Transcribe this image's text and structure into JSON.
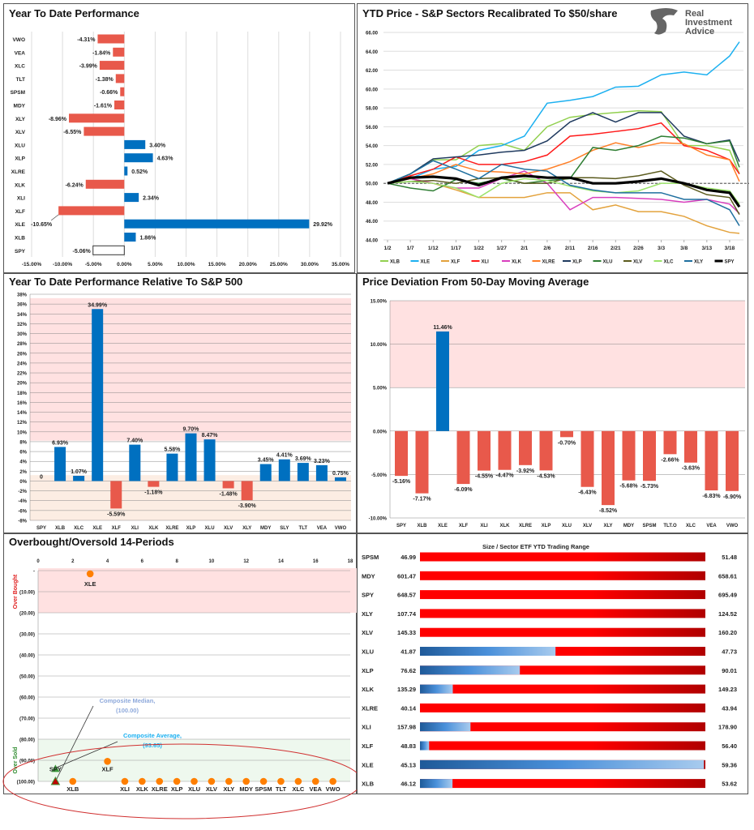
{
  "chart_data": [
    {
      "type": "bar",
      "orientation": "horizontal",
      "title": "Year To Date Performance",
      "categories": [
        "VWO",
        "VEA",
        "XLC",
        "TLT",
        "SPSM",
        "MDY",
        "XLY",
        "XLV",
        "XLU",
        "XLP",
        "XLRE",
        "XLK",
        "XLI",
        "XLF",
        "XLE",
        "XLB",
        "SPY"
      ],
      "values": [
        -4.31,
        -1.84,
        -3.99,
        -1.38,
        -0.66,
        -1.61,
        -8.96,
        -6.55,
        3.4,
        4.63,
        0.52,
        -6.24,
        2.34,
        -10.65,
        29.92,
        1.86,
        -5.06
      ],
      "data_labels": [
        "-4.31%",
        "-1.84%",
        "-3.99%",
        "-1.38%",
        "-0.66%",
        "-1.61%",
        "-8.96%",
        "-6.55%",
        "3.40%",
        "4.63%",
        "0.52%",
        "-6.24%",
        "2.34%",
        "-10.65%",
        "29.92%",
        "1.86%",
        "-5.06%"
      ],
      "xlim": [
        -15,
        35
      ],
      "x_ticks": [
        -15,
        -10,
        -5,
        0,
        5,
        10,
        15,
        20,
        25,
        30,
        35
      ],
      "x_tick_labels": [
        "-15.00%",
        "-10.00%",
        "-5.00%",
        "0.00%",
        "5.00%",
        "10.00%",
        "15.00%",
        "20.00%",
        "25.00%",
        "30.00%",
        "35.00%"
      ],
      "grid": "vertical",
      "colors": {
        "positive": "#0070C0",
        "negative": "#E8594B",
        "highlight_fill": "#FFFFFF",
        "highlight": "SPY"
      }
    },
    {
      "type": "line",
      "title": "YTD Price - S&P Sectors Recalibrated To $50/share",
      "x_tick_labels": [
        "1/2",
        "1/7",
        "1/12",
        "1/17",
        "1/22",
        "1/27",
        "2/1",
        "2/6",
        "2/11",
        "2/16",
        "2/21",
        "2/26",
        "3/3",
        "3/8",
        "3/13",
        "3/18"
      ],
      "ylim": [
        44,
        66
      ],
      "y_ticks": [
        44,
        46,
        48,
        50,
        52,
        54,
        56,
        58,
        60,
        62,
        64,
        66
      ],
      "y_tick_labels": [
        "44.00",
        "46.00",
        "48.00",
        "50.00",
        "52.00",
        "54.00",
        "56.00",
        "58.00",
        "60.00",
        "62.00",
        "64.00",
        "66.00"
      ],
      "reference_line": 50,
      "grid": "horizontal",
      "legend": "bottom",
      "series": [
        {
          "name": "XLB",
          "color": "#92D050",
          "values": [
            50,
            51,
            52.5,
            52.5,
            54,
            54.2,
            53.5,
            56,
            57,
            57.3,
            57.5,
            57.7,
            57.6,
            54,
            54,
            53.5,
            51
          ]
        },
        {
          "name": "XLE",
          "color": "#1CB0F0",
          "values": [
            50,
            50.5,
            51.5,
            51.8,
            53.5,
            54,
            55,
            58.5,
            58.8,
            59.2,
            60.2,
            60.3,
            61.5,
            61.8,
            61.5,
            63.5,
            65
          ]
        },
        {
          "name": "XLF",
          "color": "#E3A23C",
          "values": [
            50,
            50.5,
            50,
            49.3,
            48.5,
            48.5,
            48.5,
            49,
            49,
            47.2,
            47.7,
            47,
            47,
            46.5,
            45.5,
            44.8,
            44.7
          ]
        },
        {
          "name": "XLI",
          "color": "#FF1A1A",
          "values": [
            50,
            50.8,
            51.5,
            52.8,
            52,
            52,
            52.3,
            53,
            55,
            55.2,
            55.5,
            55.8,
            56.4,
            54,
            53.5,
            52.5,
            51
          ]
        },
        {
          "name": "XLK",
          "color": "#D93FBE",
          "values": [
            50,
            50.5,
            50,
            49.5,
            49.5,
            50.5,
            51.3,
            50,
            47.2,
            48.5,
            48.5,
            48.4,
            48.3,
            48,
            48.3,
            47.8,
            46.8
          ]
        },
        {
          "name": "XLRE",
          "color": "#FF7F27",
          "values": [
            50,
            50.5,
            51,
            52,
            51.3,
            51.2,
            51,
            51.5,
            52.3,
            53.5,
            54.3,
            53.8,
            54.3,
            54.2,
            53,
            52.5,
            50.2
          ]
        },
        {
          "name": "XLP",
          "color": "#1F3A5F",
          "values": [
            50,
            51,
            52.6,
            52.8,
            53,
            53.3,
            53.5,
            54.5,
            56.5,
            57.5,
            56.5,
            57.5,
            57.5,
            55,
            54.2,
            54.6,
            52.3
          ]
        },
        {
          "name": "XLU",
          "color": "#2E7D32",
          "values": [
            50,
            49.5,
            49.2,
            50.4,
            50,
            50.5,
            50,
            50.3,
            50.5,
            53.8,
            53.5,
            54,
            55,
            54.8,
            54.2,
            54.5,
            51.7
          ]
        },
        {
          "name": "XLV",
          "color": "#5B5B1E",
          "values": [
            50,
            50.2,
            50.3,
            50,
            50.5,
            50.6,
            50,
            50,
            50.6,
            50.6,
            50.5,
            50.8,
            51.3,
            49.8,
            48.8,
            48.5,
            46.7
          ]
        },
        {
          "name": "XLC",
          "color": "#9BE36A",
          "values": [
            50,
            50.2,
            50,
            49.5,
            48.5,
            50,
            50.5,
            50.3,
            49.7,
            49.2,
            49,
            49.2,
            50,
            50,
            49.5,
            49.2,
            47.8
          ]
        },
        {
          "name": "XLY",
          "color": "#1F6F9F",
          "values": [
            50,
            51,
            52.4,
            51.5,
            50.5,
            52,
            51.5,
            51.3,
            49.8,
            49.3,
            49,
            49,
            49,
            48.3,
            48.3,
            47.2,
            45.5
          ]
        },
        {
          "name": "SPY",
          "color": "#000000",
          "values": [
            50,
            50.6,
            50.7,
            50.5,
            49.8,
            50.6,
            50.8,
            50.6,
            50.6,
            50,
            50,
            50.2,
            50.5,
            50,
            49.3,
            49,
            47.5
          ]
        }
      ],
      "logo": {
        "lines": [
          "Real",
          "Investment",
          "Advice"
        ]
      }
    },
    {
      "type": "bar",
      "title": "Year To Date Performance Relative To S&P 500",
      "categories": [
        "SPY",
        "XLB",
        "XLC",
        "XLE",
        "XLF",
        "XLI",
        "XLK",
        "XLRE",
        "XLP",
        "XLU",
        "XLV",
        "XLY",
        "MDY",
        "SLY",
        "TLT",
        "VEA",
        "VWO"
      ],
      "values": [
        0,
        6.93,
        1.07,
        34.99,
        -5.59,
        7.4,
        -1.18,
        5.58,
        9.7,
        8.47,
        -1.48,
        -3.9,
        3.45,
        4.41,
        3.69,
        3.23,
        0.75
      ],
      "data_labels": [
        "0",
        "6.93%",
        "1.07%",
        "34.99%",
        "-5.59%",
        "7.40%",
        "-1.18%",
        "5.58%",
        "9.70%",
        "8.47%",
        "-1.48%",
        "-3.90%",
        "3.45%",
        "4.41%",
        "3.69%",
        "3.23%",
        "0.75%"
      ],
      "ylim": [
        -8,
        38
      ],
      "y_ticks": [
        -8,
        -6,
        -4,
        -2,
        0,
        2,
        4,
        6,
        8,
        10,
        12,
        14,
        16,
        18,
        20,
        22,
        24,
        26,
        28,
        30,
        32,
        34,
        36,
        38
      ],
      "y_tick_labels": [
        "-8%",
        "-6%",
        "-4%",
        "-2%",
        "0%",
        "2%",
        "4%",
        "6%",
        "8%",
        "10%",
        "12%",
        "14%",
        "16%",
        "18%",
        "20%",
        "22%",
        "24%",
        "26%",
        "28%",
        "30%",
        "32%",
        "34%",
        "36%",
        "38%"
      ],
      "grid": "horizontal",
      "bands": [
        {
          "from": 8.2,
          "to": 37.2,
          "color": "#FFE1E1"
        },
        {
          "from": -8,
          "to": 1.2,
          "color": "#FCEDE3"
        }
      ],
      "colors": {
        "positive": "#0070C0",
        "negative": "#E8594B"
      }
    },
    {
      "type": "bar",
      "title": "Price Deviation From 50-Day Moving Average",
      "categories": [
        "SPY",
        "XLB",
        "XLE",
        "XLF",
        "XLI",
        "XLK",
        "XLRE",
        "XLP",
        "XLU",
        "XLV",
        "XLY",
        "MDY",
        "SPSM",
        "TLT.O",
        "XLC",
        "VEA",
        "VWO"
      ],
      "values": [
        -5.16,
        -7.17,
        11.46,
        -6.09,
        -4.55,
        -4.47,
        -3.92,
        -4.53,
        -0.7,
        -6.43,
        -8.52,
        -5.68,
        -5.73,
        -2.66,
        -3.63,
        -6.83,
        -6.9
      ],
      "data_labels": [
        "-5.16%",
        "-7.17%",
        "11.46%",
        "-6.09%",
        "-4.55%",
        "-4.47%",
        "-3.92%",
        "-4.53%",
        "-0.70%",
        "-6.43%",
        "-8.52%",
        "-5.68%",
        "-5.73%",
        "-2.66%",
        "-3.63%",
        "-6.83%",
        "-6.90%"
      ],
      "ylim": [
        -10,
        15
      ],
      "y_ticks": [
        -10,
        -5,
        0,
        5,
        10,
        15
      ],
      "y_tick_labels": [
        "-10.00%",
        "-5.00%",
        "0.00%",
        "5.00%",
        "10.00%",
        "15.00%"
      ],
      "grid": "horizontal",
      "bands": [
        {
          "from": 5,
          "to": 15,
          "color": "#FFE1E1"
        }
      ],
      "colors": {
        "positive": "#0070C0",
        "negative": "#E8594B"
      }
    },
    {
      "type": "scatter",
      "title": "Overbought/Oversold 14-Periods",
      "xlim": [
        0,
        18
      ],
      "x_ticks": [
        0,
        2,
        4,
        6,
        8,
        10,
        12,
        14,
        16,
        18
      ],
      "x_tick_labels": [
        "0",
        "2",
        "4",
        "6",
        "8",
        "10",
        "12",
        "14",
        "16",
        "18"
      ],
      "ylim": [
        -100,
        0
      ],
      "y_ticks": [
        0,
        -10,
        -20,
        -30,
        -40,
        -50,
        -60,
        -70,
        -80,
        -90,
        -100
      ],
      "y_tick_labels": [
        "-",
        "(10.00)",
        "(20.00)",
        "(30.00)",
        "(40.00)",
        "(50.00)",
        "(60.00)",
        "(70.00)",
        "(80.00)",
        "(90.00)",
        "(100.00)"
      ],
      "grid": "horizontal",
      "bands": [
        {
          "label": "Over Bought",
          "from": 0,
          "to": -20,
          "color": "#FFE1E1",
          "label_color": "#E02020"
        },
        {
          "label": "Over Sold",
          "from": -80,
          "to": -100,
          "color": "#EEF8EE",
          "label_color": "#2E8B2E"
        }
      ],
      "points": [
        {
          "label": "SPY",
          "x": 1,
          "y": -94,
          "marker": "triangle",
          "color": "#3A9A3A"
        },
        {
          "label": "XLB",
          "x": 2,
          "y": -100,
          "marker": "circle",
          "color": "#FF7F00"
        },
        {
          "label": "XLE",
          "x": 3,
          "y": -1.5,
          "marker": "circle",
          "color": "#FF7F00"
        },
        {
          "label": "XLF",
          "x": 4,
          "y": -90.5,
          "marker": "circle",
          "color": "#FF7F00"
        },
        {
          "label": "XLI",
          "x": 5,
          "y": -100,
          "marker": "circle",
          "color": "#FF7F00"
        },
        {
          "label": "XLK",
          "x": 6,
          "y": -100,
          "marker": "circle",
          "color": "#FF7F00"
        },
        {
          "label": "XLRE",
          "x": 7,
          "y": -100,
          "marker": "circle",
          "color": "#FF7F00"
        },
        {
          "label": "XLP",
          "x": 8,
          "y": -100,
          "marker": "circle",
          "color": "#FF7F00"
        },
        {
          "label": "XLU",
          "x": 9,
          "y": -100,
          "marker": "circle",
          "color": "#FF7F00"
        },
        {
          "label": "XLV",
          "x": 10,
          "y": -100,
          "marker": "circle",
          "color": "#FF7F00"
        },
        {
          "label": "XLY",
          "x": 11,
          "y": -100,
          "marker": "circle",
          "color": "#FF7F00"
        },
        {
          "label": "MDY",
          "x": 12,
          "y": -100,
          "marker": "circle",
          "color": "#FF7F00"
        },
        {
          "label": "SPSM",
          "x": 13,
          "y": -100,
          "marker": "circle",
          "color": "#FF7F00"
        },
        {
          "label": "TLT",
          "x": 14,
          "y": -100,
          "marker": "circle",
          "color": "#FF7F00"
        },
        {
          "label": "XLC",
          "x": 15,
          "y": -100,
          "marker": "circle",
          "color": "#FF7F00"
        },
        {
          "label": "VEA",
          "x": 16,
          "y": -100,
          "marker": "circle",
          "color": "#FF7F00"
        },
        {
          "label": "VWO",
          "x": 17,
          "y": -100,
          "marker": "circle",
          "color": "#FF7F00"
        }
      ],
      "annotations": [
        {
          "name": "Composite Median",
          "lines": [
            "Composite Median,",
            "(100.00)"
          ],
          "x": 1,
          "y": -100,
          "color": "#8EA9DB",
          "marker_color": "#C00000"
        },
        {
          "name": "Composite Average",
          "lines": [
            "Composite Average,",
            "(93.65)"
          ],
          "x": 1,
          "y": -93.65,
          "color": "#1CB0F0",
          "marker_color": "#3A9A3A"
        }
      ],
      "highlight_ellipse_color": "#D03030"
    },
    {
      "type": "table",
      "title": "Size / Sector ETF YTD Trading Range",
      "columns": [
        "ticker",
        "low",
        "range",
        "high"
      ],
      "rows": [
        {
          "ticker": "SPSM",
          "low": "46.99",
          "high": "51.48",
          "position": 0
        },
        {
          "ticker": "MDY",
          "low": "601.47",
          "high": "658.61",
          "position": 0
        },
        {
          "ticker": "SPY",
          "low": "648.57",
          "high": "695.49",
          "position": 0
        },
        {
          "ticker": "XLY",
          "low": "107.74",
          "high": "124.52",
          "position": 0
        },
        {
          "ticker": "XLV",
          "low": "145.33",
          "high": "160.20",
          "position": 0
        },
        {
          "ticker": "XLU",
          "low": "41.87",
          "high": "47.73",
          "position": 0.475
        },
        {
          "ticker": "XLP",
          "low": "76.62",
          "high": "90.01",
          "position": 0.35
        },
        {
          "ticker": "XLK",
          "low": "135.29",
          "high": "149.23",
          "position": 0.115
        },
        {
          "ticker": "XLRE",
          "low": "40.14",
          "high": "43.94",
          "position": 0
        },
        {
          "ticker": "XLI",
          "low": "157.98",
          "high": "178.90",
          "position": 0.177
        },
        {
          "ticker": "XLF",
          "low": "48.83",
          "high": "56.40",
          "position": 0.032
        },
        {
          "ticker": "XLE",
          "low": "45.13",
          "high": "59.36",
          "position": 0.995
        },
        {
          "ticker": "XLB",
          "low": "46.12",
          "high": "53.62",
          "position": 0.114
        }
      ],
      "colors": {
        "traded": "#2E6DB4",
        "remaining": "#FF0000"
      }
    }
  ]
}
